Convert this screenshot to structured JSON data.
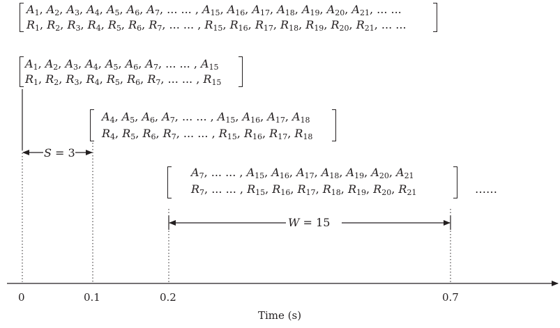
{
  "full_sequence": {
    "row_a": "A1, A2, A3, A4, A5, A6, A7, ... ... , A15, A16, A17, A18, A19, A20, A21, ... ...",
    "row_r": "R1, R2, R3, R4, R5, R6, R7, ... ... , R15, R16, R17, R18, R19, R20, R21, ... ..."
  },
  "windows": [
    {
      "row_a": "A1, A2, A3, A4, A5, A6, A7, ... ... , A15",
      "row_r": "R1, R2, R3, R4, R5, R6, R7, ... ... , R15"
    },
    {
      "row_a": "A4, A5, A6, A7, ... ... , A15, A16, A17, A18",
      "row_r": "R4, R5, R6, R7, ... ... , R15, R16, R17, R18"
    },
    {
      "row_a": "A7, ... ... , A15, A16, A17, A18, A19, A20, A21",
      "row_r": "R7, ... ... , R15, R16, R17, R18, R19, R20, R21"
    }
  ],
  "continuation": "……",
  "step_label": {
    "var": "S",
    "value": " = 3"
  },
  "width_label": {
    "var": "W",
    "value": " = 15"
  },
  "axis": {
    "ticks": [
      "0",
      "0.1",
      "0.2",
      "0.7"
    ],
    "label": "Time (s)"
  }
}
